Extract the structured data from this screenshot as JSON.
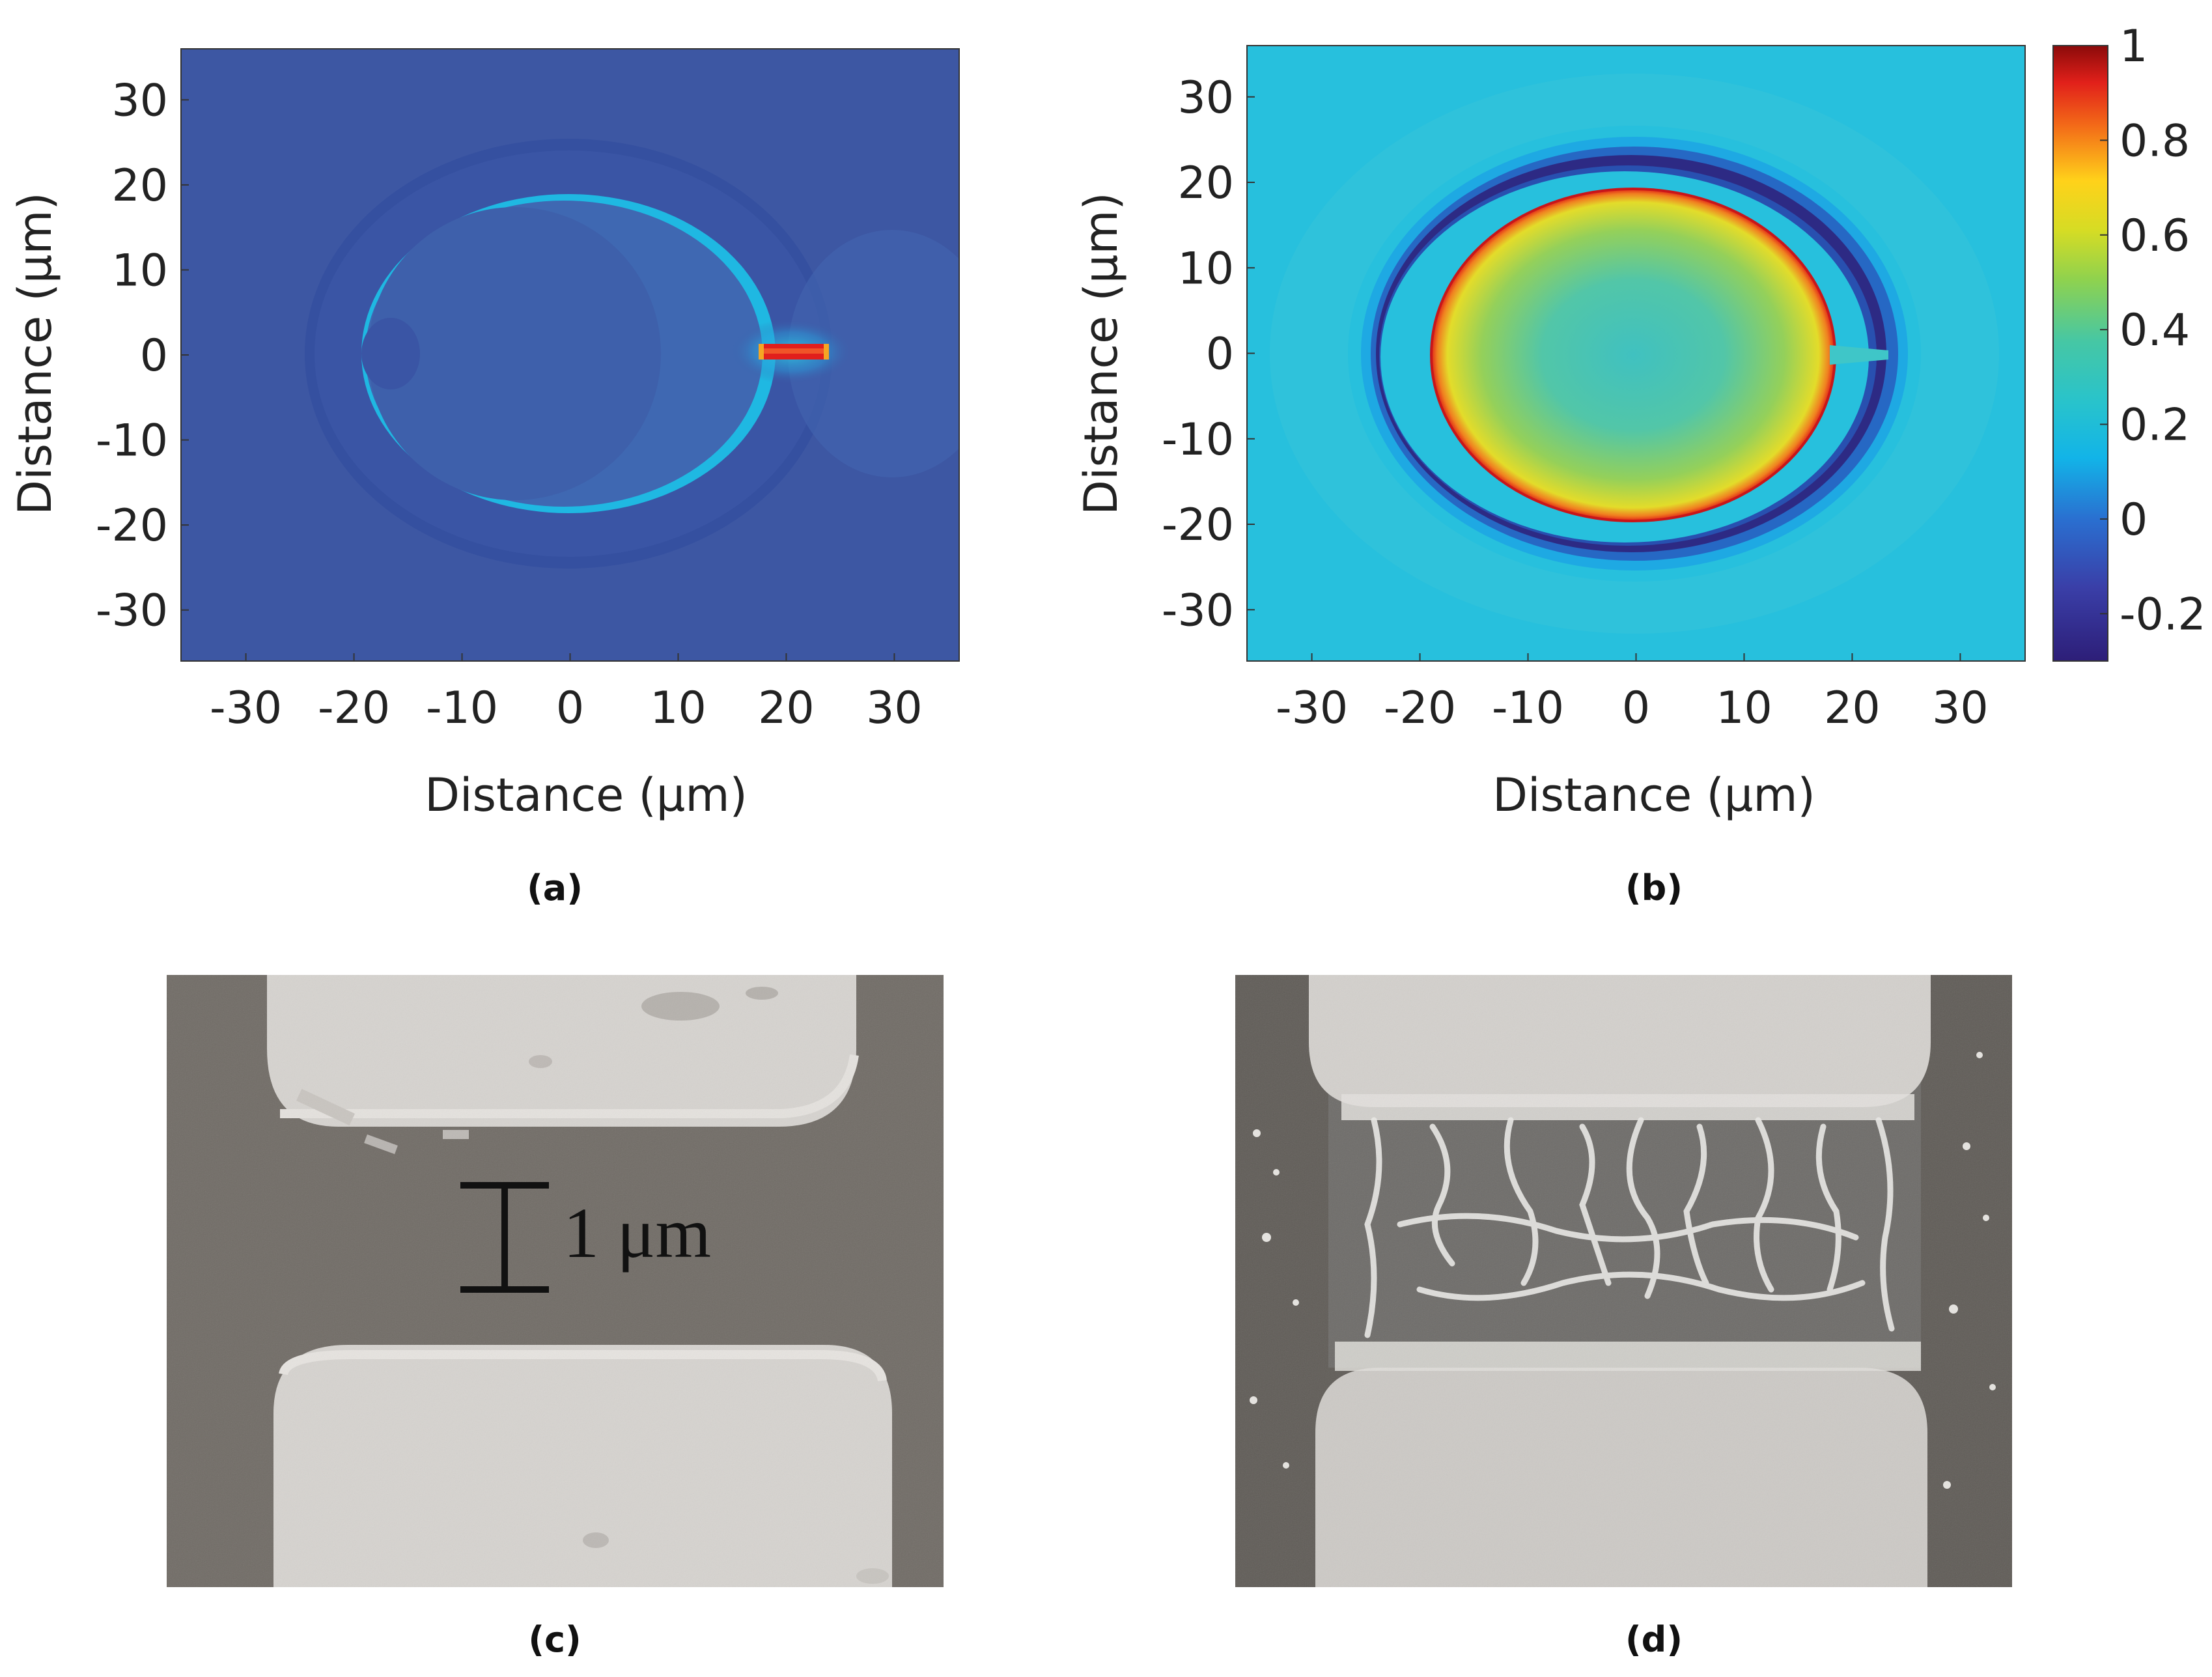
{
  "panels": {
    "a": {
      "label": "(a)",
      "xlabel": "Distance (μm)",
      "ylabel": "Distance (μm)",
      "xticks": [
        "-30",
        "-20",
        "-10",
        "0",
        "10",
        "20",
        "30"
      ],
      "yticks": [
        "30",
        "20",
        "10",
        "0",
        "-10",
        "-20",
        "-30"
      ]
    },
    "b": {
      "label": "(b)",
      "xlabel": "Distance (μm)",
      "ylabel": "Distance (μm)",
      "xticks": [
        "-30",
        "-20",
        "-10",
        "0",
        "10",
        "20",
        "30"
      ],
      "yticks": [
        "30",
        "20",
        "10",
        "0",
        "-10",
        "-20",
        "-30"
      ]
    },
    "c": {
      "label": "(c)",
      "scale_bar": "1 μm"
    },
    "d": {
      "label": "(d)"
    }
  },
  "colorbar": {
    "ticks": [
      "1",
      "0.8",
      "0.6",
      "0.4",
      "0.2",
      "0",
      "-0.2"
    ]
  },
  "colors": {
    "a_background": "#3d57a3",
    "b_background": "#27c0dd",
    "jet_low": "#2d1e78",
    "jet_high": "#8b0a0a"
  },
  "chart_data": [
    {
      "type": "heatmap",
      "panel": "a",
      "xlabel": "Distance (μm)",
      "ylabel": "Distance (μm)",
      "xlim": [
        -36,
        36
      ],
      "ylim": [
        -36,
        36
      ],
      "xticks": [
        -30,
        -20,
        -10,
        0,
        10,
        20,
        30
      ],
      "yticks": [
        -30,
        -20,
        -10,
        0,
        10,
        20,
        30
      ],
      "colormap": "jet",
      "color_range": [
        -0.3,
        1
      ],
      "features": {
        "background_value": 0.0,
        "inner_ring_center": [
          0,
          0
        ],
        "inner_ring_radii": [
          18.5,
          18.5
        ],
        "outer_ring_radii": [
          24.5,
          24
        ],
        "hot_bar_x": [
          18,
          24
        ],
        "hot_bar_y": 0,
        "hot_bar_value": 0.95
      }
    },
    {
      "type": "heatmap",
      "panel": "b",
      "xlabel": "Distance (μm)",
      "ylabel": "Distance (μm)",
      "xlim": [
        -36,
        36
      ],
      "ylim": [
        -36,
        36
      ],
      "xticks": [
        -30,
        -20,
        -10,
        0,
        10,
        20,
        30
      ],
      "yticks": [
        -30,
        -20,
        -10,
        0,
        10,
        20,
        30
      ],
      "colormap": "jet",
      "color_range": [
        -0.3,
        1
      ],
      "features": {
        "background_value": 0.1,
        "inner_ellipse_center": [
          0,
          0
        ],
        "inner_ellipse_radii": [
          19,
          18.5
        ],
        "inner_value": 0.3,
        "rim_value": 0.85,
        "dark_ring_radii": [
          24.5,
          23.5
        ],
        "dark_ring_value": -0.25
      }
    }
  ]
}
